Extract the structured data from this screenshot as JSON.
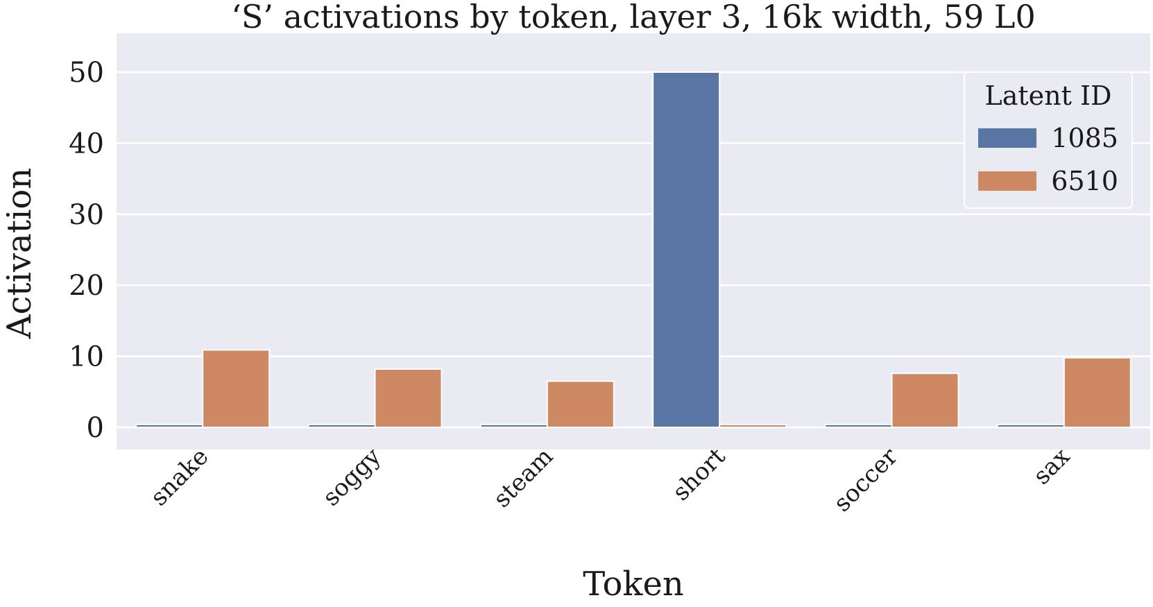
{
  "chart_data": {
    "type": "bar",
    "title": "‘S’ activations by token, layer 3, 16k width, 59 L0",
    "xlabel": "Token",
    "ylabel": "Activation",
    "ylim": [
      0,
      55
    ],
    "yticks": [
      0,
      10,
      20,
      30,
      40,
      50
    ],
    "categories": [
      "snake",
      "soggy",
      "steam",
      "short",
      "soccer",
      "sax"
    ],
    "series": [
      {
        "name": "1085",
        "color": "#5875a4",
        "values": [
          0.4,
          0.4,
          0.4,
          50.0,
          0.4,
          0.4
        ]
      },
      {
        "name": "6510",
        "color": "#cc8963",
        "values": [
          10.9,
          8.2,
          6.5,
          0.4,
          7.6,
          9.8
        ]
      }
    ],
    "legend": {
      "title": "Latent ID",
      "placement": "top-right"
    },
    "grid": true,
    "background": "#eaeaf2"
  }
}
